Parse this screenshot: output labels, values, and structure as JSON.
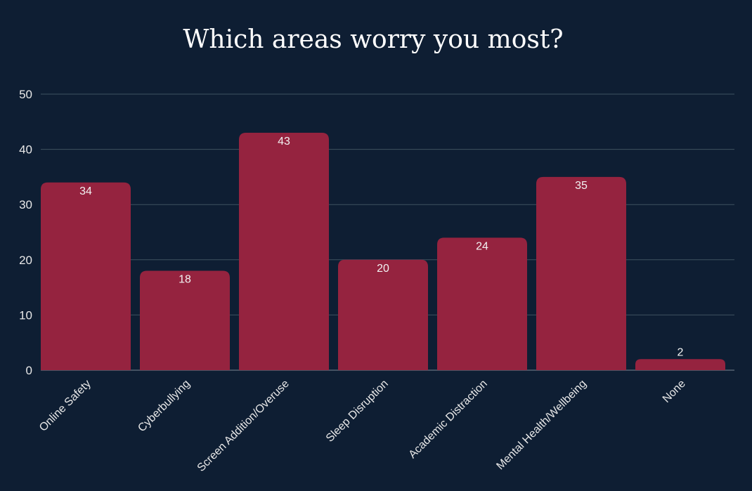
{
  "chart_data": {
    "type": "bar",
    "title": "Which areas worry you most?",
    "categories": [
      "Online Safety",
      "Cyberbullying",
      "Screen Addition/Overuse",
      "Sleep Disruption",
      "Academic Distraction",
      "Mental Health/Wellbeing",
      "None"
    ],
    "values": [
      34,
      18,
      43,
      20,
      24,
      35,
      2
    ],
    "ylim": [
      0,
      50
    ],
    "yticks": [
      0,
      10,
      20,
      30,
      40,
      50
    ],
    "xlabel": "",
    "ylabel": "",
    "grid": true,
    "legend": "none"
  },
  "colors": {
    "background": "#0e1e33",
    "bar": "#95233f",
    "text": "#ffffff"
  }
}
